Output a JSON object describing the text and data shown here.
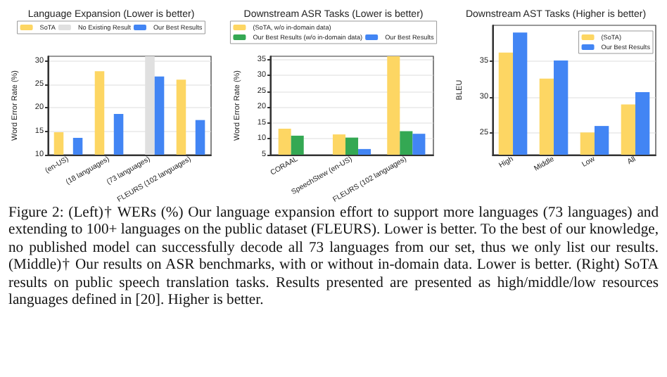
{
  "chart_data": [
    {
      "type": "bar",
      "title": "Language Expansion (Lower is better)",
      "ylabel": "Word Error Rate (%)",
      "categories": [
        "(en-US)",
        "(18 languages)",
        "(73 languages)",
        "FLEURS (102 languages)"
      ],
      "series": [
        {
          "name": "SoTA",
          "color": "#fdd663",
          "values": [
            14.8,
            27.8,
            null,
            26.0
          ]
        },
        {
          "name": "No Existing Result",
          "color": "#e0e0e0",
          "values": [
            null,
            null,
            31,
            null
          ]
        },
        {
          "name": "Our Best Results",
          "color": "#4285f4",
          "values": [
            13.6,
            18.7,
            26.7,
            17.4
          ]
        }
      ],
      "ylim": [
        10,
        31
      ],
      "yticks": [
        10,
        15,
        20,
        25,
        30
      ],
      "grid": "y",
      "legend": "top"
    },
    {
      "type": "bar",
      "title": "Downstream ASR Tasks (Lower is better)",
      "ylabel": "Word Error Rate (%)",
      "categories": [
        "CORAAL",
        "SpeechStew (en-US)",
        "FLEURS (102 languages)"
      ],
      "series": [
        {
          "name": "(SoTA, w/o in-domain data)",
          "color": "#fdd663",
          "values": [
            13.2,
            11.4,
            36
          ]
        },
        {
          "name": "Our Best Results (w/o in-domain data)",
          "color": "#34a853",
          "values": [
            11.0,
            10.4,
            12.4
          ]
        },
        {
          "name": "Our Best Results",
          "color": "#4285f4",
          "values": [
            null,
            6.8,
            11.6
          ]
        }
      ],
      "ylim": [
        5,
        36
      ],
      "yticks": [
        5,
        10,
        15,
        20,
        25,
        30,
        35
      ],
      "grid": "y",
      "legend": "top"
    },
    {
      "type": "bar",
      "title": "Downstream AST Tasks (Higher is better)",
      "ylabel": "BLEU",
      "categories": [
        "High",
        "Middle",
        "Low",
        "All"
      ],
      "series": [
        {
          "name": "(SoTA)",
          "color": "#fdd663",
          "values": [
            36.2,
            32.6,
            25.1,
            29.0
          ]
        },
        {
          "name": "Our Best Results",
          "color": "#4285f4",
          "values": [
            39.0,
            35.1,
            26.0,
            30.7
          ]
        }
      ],
      "ylim": [
        22,
        40
      ],
      "yticks": [
        25,
        30,
        35
      ],
      "grid": "y",
      "legend": "top right"
    },
    {
      "type": "other",
      "annotations": [
        "Figure 2: (Left)† WERs (%) Our language expansion effort to support more languages (73 languages) and extending to 100+ languages on the public dataset (FLEURS). Lower is better. To the best of our knowledge, no published model can successfully decode all 73 languages from our set, thus we only list our results. (Middle)† Our results on ASR benchmarks, with or without in-domain data. Lower is better. (Right) SoTA results on public speech translation tasks. Results presented are presented as high/middle/low resources languages defined in [20]. Higher is better."
      ]
    }
  ]
}
